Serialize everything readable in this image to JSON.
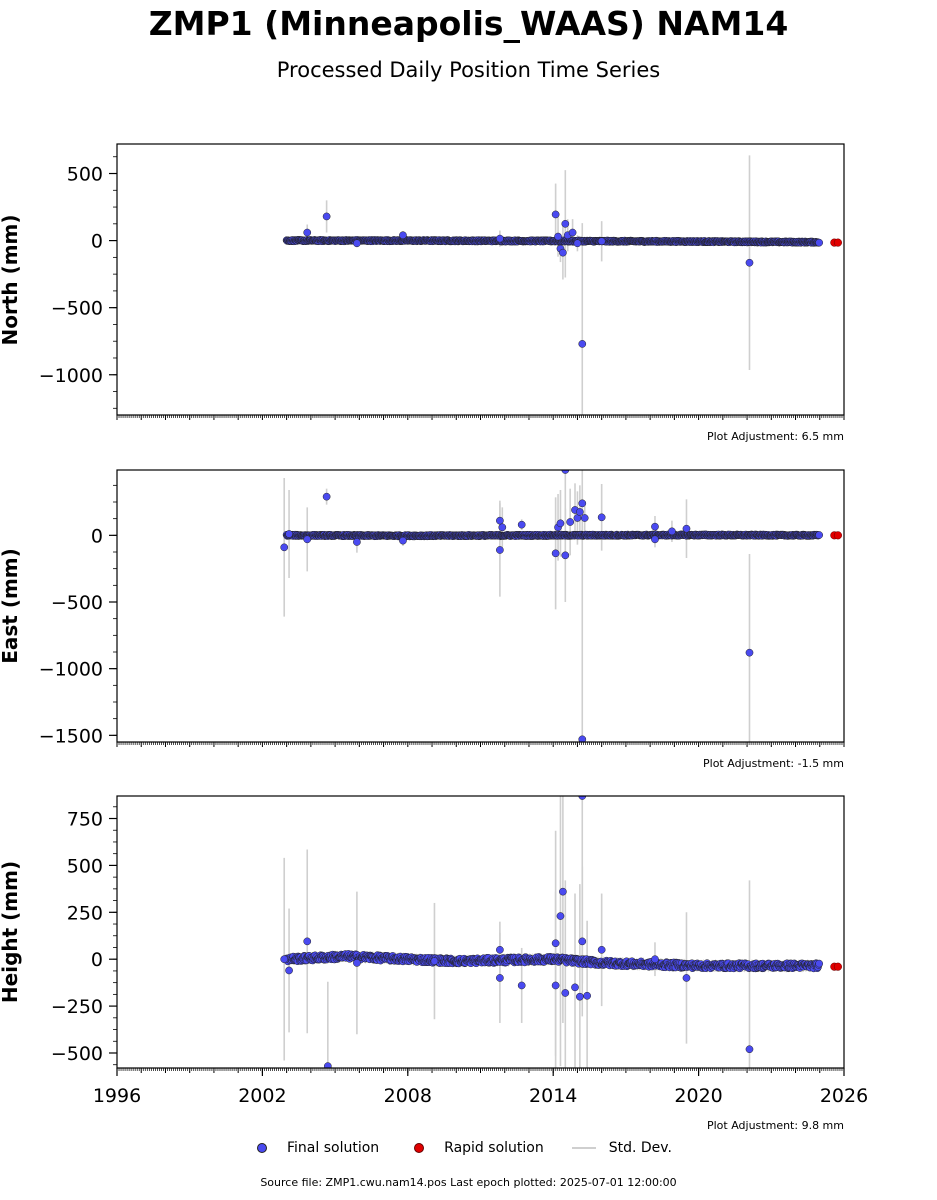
{
  "title": "ZMP1 (Minneapolis_WAAS) NAM14",
  "subtitle": "Processed Daily Position Time Series",
  "legend": {
    "final": "Final solution",
    "rapid": "Rapid solution",
    "std": "Std. Dev."
  },
  "source_text": "Source file: ZMP1.cwu.nam14.pos  Last epoch plotted: 2025-07-01 12:00:00",
  "colors": {
    "final": "#4a4af0",
    "rapid": "#e00000",
    "stddev": "#cfcfcf"
  },
  "chart_data": [
    {
      "type": "scatter",
      "ylabel": "North (mm)",
      "adjustment": "Plot Adjustment: 6.5 mm",
      "xlim": [
        1996,
        2026
      ],
      "ylim": [
        -1300,
        720
      ],
      "yticks": [
        500,
        0,
        -500,
        -1000
      ],
      "ytick_labels": [
        "500",
        "0",
        "−500",
        "−1000"
      ],
      "xtick_labels_shown": false,
      "baseline": [
        [
          2003.0,
          0
        ],
        [
          2008.0,
          0
        ],
        [
          2014.0,
          -3
        ],
        [
          2020.0,
          -7
        ],
        [
          2025.0,
          -12
        ]
      ],
      "outliers": [
        {
          "x": 2003.85,
          "y": 60,
          "sd": 60
        },
        {
          "x": 2004.65,
          "y": 180,
          "sd": 120
        },
        {
          "x": 2005.9,
          "y": -20,
          "sd": 30
        },
        {
          "x": 2007.8,
          "y": 40,
          "sd": 30
        },
        {
          "x": 2011.8,
          "y": 15,
          "sd": 60
        },
        {
          "x": 2014.1,
          "y": 195,
          "sd": 230
        },
        {
          "x": 2014.2,
          "y": 30,
          "sd": 150
        },
        {
          "x": 2014.3,
          "y": -60,
          "sd": 100
        },
        {
          "x": 2014.4,
          "y": -90,
          "sd": 200
        },
        {
          "x": 2014.5,
          "y": 125,
          "sd": 400
        },
        {
          "x": 2014.6,
          "y": 40,
          "sd": 120
        },
        {
          "x": 2014.8,
          "y": 60,
          "sd": 100
        },
        {
          "x": 2015.0,
          "y": -20,
          "sd": 60
        },
        {
          "x": 2015.2,
          "y": -770,
          "sd": 900
        },
        {
          "x": 2016.0,
          "y": -5,
          "sd": 150
        },
        {
          "x": 2022.1,
          "y": -165,
          "sd": 800
        }
      ],
      "rapid": [
        {
          "x": 2025.6,
          "y": -15
        },
        {
          "x": 2025.75,
          "y": -15
        }
      ]
    },
    {
      "type": "scatter",
      "ylabel": "East (mm)",
      "adjustment": "Plot Adjustment: -1.5 mm",
      "xlim": [
        1996,
        2026
      ],
      "ylim": [
        -1550,
        490
      ],
      "yticks": [
        0,
        -500,
        -1000,
        -1500
      ],
      "ytick_labels": [
        "0",
        "−500",
        "−1000",
        "−1500"
      ],
      "xtick_labels_shown": false,
      "baseline": [
        [
          2003.0,
          0
        ],
        [
          2008.0,
          -3
        ],
        [
          2014.0,
          0
        ],
        [
          2020.0,
          2
        ],
        [
          2025.0,
          0
        ]
      ],
      "outliers": [
        {
          "x": 2002.9,
          "y": -90,
          "sd": 520
        },
        {
          "x": 2003.1,
          "y": 10,
          "sd": 330
        },
        {
          "x": 2003.85,
          "y": -30,
          "sd": 240
        },
        {
          "x": 2004.65,
          "y": 290,
          "sd": 60
        },
        {
          "x": 2005.9,
          "y": -50,
          "sd": 80
        },
        {
          "x": 2007.8,
          "y": -40,
          "sd": 40
        },
        {
          "x": 2011.8,
          "y": 110,
          "sd": 150
        },
        {
          "x": 2011.8,
          "y": -110,
          "sd": 350
        },
        {
          "x": 2011.9,
          "y": 60,
          "sd": 150
        },
        {
          "x": 2012.7,
          "y": 80,
          "sd": 40
        },
        {
          "x": 2014.1,
          "y": -135,
          "sd": 420
        },
        {
          "x": 2014.2,
          "y": 60,
          "sd": 250
        },
        {
          "x": 2014.3,
          "y": 90,
          "sd": 250
        },
        {
          "x": 2014.5,
          "y": -150,
          "sd": 350
        },
        {
          "x": 2014.5,
          "y": 490,
          "sd": 400
        },
        {
          "x": 2014.7,
          "y": 100,
          "sd": 250
        },
        {
          "x": 2014.9,
          "y": 190,
          "sd": 200
        },
        {
          "x": 2015.0,
          "y": 130,
          "sd": 200
        },
        {
          "x": 2015.1,
          "y": 175,
          "sd": 200
        },
        {
          "x": 2015.2,
          "y": 240,
          "sd": 250
        },
        {
          "x": 2015.2,
          "y": -1530,
          "sd": 1600
        },
        {
          "x": 2015.3,
          "y": 130,
          "sd": 120
        },
        {
          "x": 2016.0,
          "y": 135,
          "sd": 250
        },
        {
          "x": 2018.2,
          "y": 65,
          "sd": 80
        },
        {
          "x": 2018.2,
          "y": -30,
          "sd": 60
        },
        {
          "x": 2018.9,
          "y": 30,
          "sd": 80
        },
        {
          "x": 2019.5,
          "y": 50,
          "sd": 220
        },
        {
          "x": 2022.1,
          "y": -880,
          "sd": 740
        }
      ],
      "rapid": [
        {
          "x": 2025.6,
          "y": 0
        },
        {
          "x": 2025.75,
          "y": 0
        }
      ]
    },
    {
      "type": "scatter",
      "ylabel": "Height (mm)",
      "adjustment": "Plot Adjustment: 9.8 mm",
      "xlim": [
        1996,
        2026
      ],
      "ylim": [
        -580,
        870
      ],
      "yticks": [
        750,
        500,
        250,
        0,
        -250,
        -500
      ],
      "ytick_labels": [
        "750",
        "500",
        "250",
        "0",
        "−250",
        "−500"
      ],
      "xticks": [
        1996,
        2002,
        2008,
        2014,
        2020,
        2026
      ],
      "xtick_labels": [
        "1996",
        "2002",
        "2008",
        "2014",
        "2020",
        "2026"
      ],
      "xtick_labels_shown": true,
      "baseline": [
        [
          2003.0,
          0
        ],
        [
          2005.5,
          15
        ],
        [
          2008.0,
          0
        ],
        [
          2010.0,
          -10
        ],
        [
          2014.0,
          0
        ],
        [
          2016.0,
          -20
        ],
        [
          2020.0,
          -35
        ],
        [
          2025.0,
          -35
        ]
      ],
      "outliers": [
        {
          "x": 2002.9,
          "y": 0,
          "sd": 540
        },
        {
          "x": 2003.1,
          "y": -60,
          "sd": 330
        },
        {
          "x": 2003.85,
          "y": 95,
          "sd": 490
        },
        {
          "x": 2004.7,
          "y": -570,
          "sd": 450
        },
        {
          "x": 2005.9,
          "y": -20,
          "sd": 380
        },
        {
          "x": 2009.1,
          "y": -10,
          "sd": 310
        },
        {
          "x": 2011.8,
          "y": 50,
          "sd": 150
        },
        {
          "x": 2011.8,
          "y": -100,
          "sd": 240
        },
        {
          "x": 2012.7,
          "y": -140,
          "sd": 200
        },
        {
          "x": 2014.1,
          "y": 85,
          "sd": 600
        },
        {
          "x": 2014.1,
          "y": -140,
          "sd": 500
        },
        {
          "x": 2014.3,
          "y": 230,
          "sd": 800
        },
        {
          "x": 2014.4,
          "y": 360,
          "sd": 700
        },
        {
          "x": 2014.5,
          "y": -180,
          "sd": 600
        },
        {
          "x": 2014.9,
          "y": -150,
          "sd": 500
        },
        {
          "x": 2015.1,
          "y": -200,
          "sd": 600
        },
        {
          "x": 2015.2,
          "y": 870,
          "sd": 1000
        },
        {
          "x": 2015.2,
          "y": 95,
          "sd": 400
        },
        {
          "x": 2015.4,
          "y": -195,
          "sd": 400
        },
        {
          "x": 2016.0,
          "y": 50,
          "sd": 300
        },
        {
          "x": 2018.2,
          "y": 0,
          "sd": 90
        },
        {
          "x": 2019.5,
          "y": -100,
          "sd": 350
        },
        {
          "x": 2022.1,
          "y": -480,
          "sd": 900
        }
      ],
      "rapid": [
        {
          "x": 2025.6,
          "y": -40
        },
        {
          "x": 2025.75,
          "y": -40
        }
      ]
    }
  ]
}
